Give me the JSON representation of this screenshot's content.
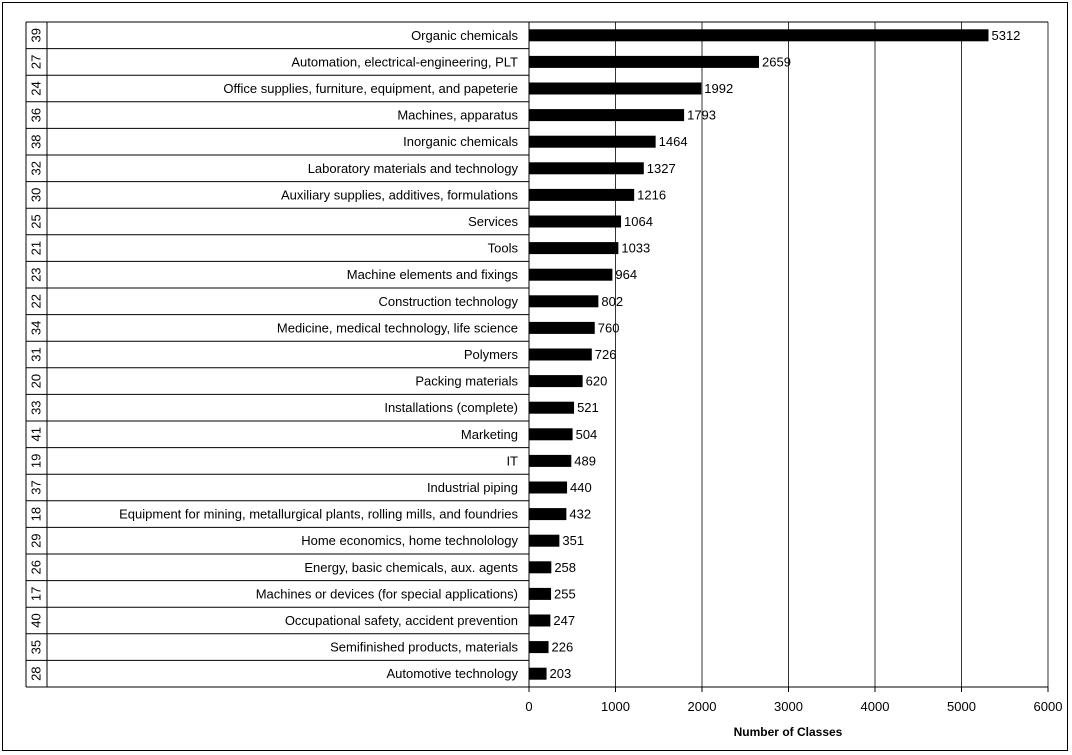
{
  "chart_data": {
    "type": "bar",
    "orientation": "horizontal",
    "xlabel": "Number of Classes",
    "xlim": [
      0,
      6000
    ],
    "xticks": [
      0,
      1000,
      2000,
      3000,
      4000,
      5000,
      6000
    ],
    "grid": "vertical",
    "legend": "none",
    "bar_color": "#000000",
    "categories": [
      {
        "code": "39",
        "label": "Organic chemicals",
        "value": 5312
      },
      {
        "code": "27",
        "label": "Automation, electrical-engineering, PLT",
        "value": 2659
      },
      {
        "code": "24",
        "label": "Office supplies, furniture, equipment, and papeterie",
        "value": 1992
      },
      {
        "code": "36",
        "label": "Machines, apparatus",
        "value": 1793
      },
      {
        "code": "38",
        "label": "Inorganic chemicals",
        "value": 1464
      },
      {
        "code": "32",
        "label": "Laboratory materials and technology",
        "value": 1327
      },
      {
        "code": "30",
        "label": "Auxiliary supplies, additives, formulations",
        "value": 1216
      },
      {
        "code": "25",
        "label": "Services",
        "value": 1064
      },
      {
        "code": "21",
        "label": "Tools",
        "value": 1033
      },
      {
        "code": "23",
        "label": "Machine elements and fixings",
        "value": 964
      },
      {
        "code": "22",
        "label": "Construction technology",
        "value": 802
      },
      {
        "code": "34",
        "label": "Medicine, medical technology, life science",
        "value": 760
      },
      {
        "code": "31",
        "label": "Polymers",
        "value": 726
      },
      {
        "code": "20",
        "label": "Packing materials",
        "value": 620
      },
      {
        "code": "33",
        "label": "Installations (complete)",
        "value": 521
      },
      {
        "code": "41",
        "label": "Marketing",
        "value": 504
      },
      {
        "code": "19",
        "label": "IT",
        "value": 489
      },
      {
        "code": "37",
        "label": "Industrial piping",
        "value": 440
      },
      {
        "code": "18",
        "label": "Equipment for mining, metallurgical plants, rolling mills, and foundries",
        "value": 432
      },
      {
        "code": "29",
        "label": "Home economics, home technolology",
        "value": 351
      },
      {
        "code": "26",
        "label": "Energy, basic chemicals, aux. agents",
        "value": 258
      },
      {
        "code": "17",
        "label": "Machines or devices (for special applications)",
        "value": 255
      },
      {
        "code": "40",
        "label": "Occupational safety, accident prevention",
        "value": 247
      },
      {
        "code": "35",
        "label": "Semifinished products, materials",
        "value": 226
      },
      {
        "code": "28",
        "label": "Automotive technology",
        "value": 203
      }
    ]
  }
}
